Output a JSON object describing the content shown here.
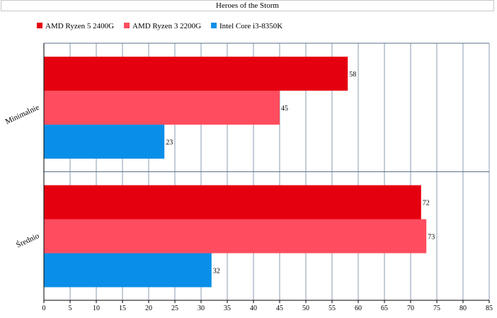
{
  "chart_data": {
    "type": "bar",
    "orientation": "horizontal",
    "title": "Heroes of the Storm",
    "categories": [
      "Minimalnie",
      "Średnio"
    ],
    "series": [
      {
        "name": "AMD Ryzen 5 2400G",
        "color": "#e50010",
        "values": [
          58,
          72
        ]
      },
      {
        "name": "AMD Ryzen 3 2200G",
        "color": "#ff4d5f",
        "values": [
          45,
          73
        ]
      },
      {
        "name": "Intel Core i3-8350K",
        "color": "#0a8fe8",
        "values": [
          23,
          32
        ]
      }
    ],
    "xlim": [
      0,
      85
    ],
    "xticks": [
      0,
      5,
      10,
      15,
      20,
      25,
      30,
      35,
      40,
      45,
      50,
      55,
      60,
      65,
      70,
      75,
      80,
      85
    ],
    "grid": true,
    "legend_position": "top-left",
    "data_labels": true
  }
}
